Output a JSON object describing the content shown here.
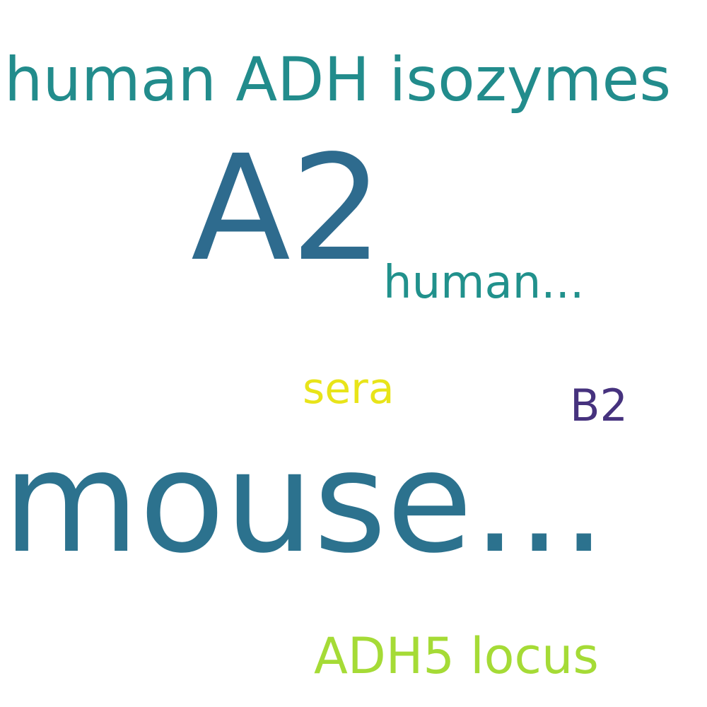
{
  "word_cloud": {
    "words": [
      {
        "id": "w-human-adh",
        "text": "human ADH isozymes",
        "color": "#228c8c"
      },
      {
        "id": "w-a2",
        "text": "A2",
        "color": "#2e6b8e"
      },
      {
        "id": "w-human-ell",
        "text": "human...",
        "color": "#21918c"
      },
      {
        "id": "w-sera",
        "text": "sera",
        "color": "#e8e419"
      },
      {
        "id": "w-b2",
        "text": "B2",
        "color": "#46327e"
      },
      {
        "id": "w-mouse",
        "text": "mouse...",
        "color": "#2c728e"
      },
      {
        "id": "w-adh5",
        "text": "ADH5 locus",
        "color": "#a5db36"
      }
    ]
  }
}
